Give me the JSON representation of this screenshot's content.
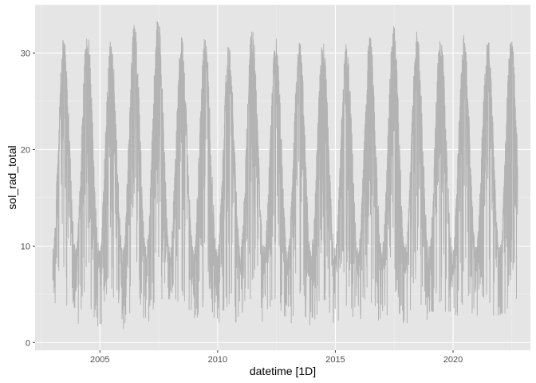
{
  "chart_data": {
    "type": "line",
    "title": "",
    "xlabel": "datetime [1D]",
    "ylabel": "sol_rad_total",
    "xlim": [
      "2002-04-01",
      "2023-04-15"
    ],
    "ylim": [
      -0.8,
      35
    ],
    "x_ticks": [
      "2005",
      "2010",
      "2015",
      "2020"
    ],
    "y_ticks": [
      0,
      10,
      20,
      30
    ],
    "grid": true,
    "legend": "none",
    "colors": {
      "panel": "#e5e5e5",
      "grid": "#ffffff",
      "line": "#b3b3b3"
    },
    "series": [
      {
        "description_peaks": "daily values oscillate seasonally; yearly summer peaks and winter troughs",
        "annual_cycle": [
          {
            "year": 2003,
            "peak": 31.8,
            "trough": 3.6
          },
          {
            "year": 2004,
            "peak": 32.6,
            "trough": 1.7
          },
          {
            "year": 2005,
            "peak": 31.5,
            "trough": 0.9
          },
          {
            "year": 2006,
            "peak": 33.1,
            "trough": 2.0
          },
          {
            "year": 2007,
            "peak": 33.7,
            "trough": 2.2
          },
          {
            "year": 2008,
            "peak": 31.9,
            "trough": 1.3
          },
          {
            "year": 2009,
            "peak": 32.1,
            "trough": 2.5
          },
          {
            "year": 2010,
            "peak": 31.3,
            "trough": 1.9
          },
          {
            "year": 2011,
            "peak": 32.8,
            "trough": 2.1
          },
          {
            "year": 2012,
            "peak": 31.6,
            "trough": 2.4
          },
          {
            "year": 2013,
            "peak": 31.6,
            "trough": 1.8
          },
          {
            "year": 2014,
            "peak": 31.6,
            "trough": 1.6
          },
          {
            "year": 2015,
            "peak": 31.2,
            "trough": 1.5
          },
          {
            "year": 2016,
            "peak": 32.0,
            "trough": 2.3
          },
          {
            "year": 2017,
            "peak": 33.0,
            "trough": 2.0
          },
          {
            "year": 2018,
            "peak": 32.3,
            "trough": 2.0
          },
          {
            "year": 2019,
            "peak": 32.1,
            "trough": 3.2
          },
          {
            "year": 2020,
            "peak": 32.1,
            "trough": 2.0
          },
          {
            "year": 2021,
            "peak": 31.8,
            "trough": 2.8
          },
          {
            "year": 2022,
            "peak": 31.8,
            "trough": 3.0
          }
        ],
        "x_start": "2003-01-01",
        "x_end": "2022-10-01"
      }
    ]
  }
}
